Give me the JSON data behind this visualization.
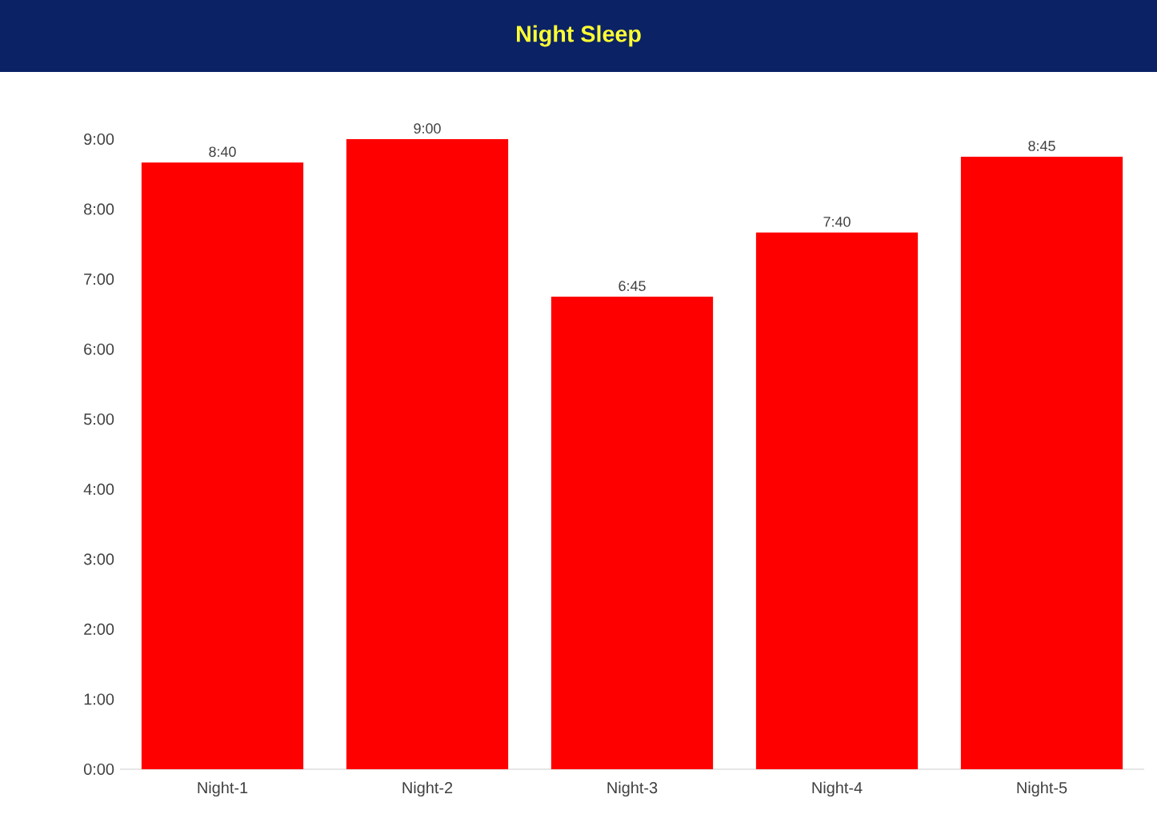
{
  "chart_data": {
    "type": "bar",
    "title": "Night Sleep",
    "categories": [
      "Night-1",
      "Night-2",
      "Night-3",
      "Night-4",
      "Night-5"
    ],
    "values": [
      8.667,
      9.0,
      6.75,
      7.667,
      8.75
    ],
    "value_labels": [
      "8:40",
      "9:00",
      "6:45",
      "7:40",
      "8:45"
    ],
    "color": "#ff0000",
    "ylim": [
      0,
      9
    ],
    "yticks": [
      {
        "value": 0,
        "label": "0:00"
      },
      {
        "value": 1,
        "label": "1:00"
      },
      {
        "value": 2,
        "label": "2:00"
      },
      {
        "value": 3,
        "label": "3:00"
      },
      {
        "value": 4,
        "label": "4:00"
      },
      {
        "value": 5,
        "label": "5:00"
      },
      {
        "value": 6,
        "label": "6:00"
      },
      {
        "value": 7,
        "label": "7:00"
      },
      {
        "value": 8,
        "label": "8:00"
      },
      {
        "value": 9,
        "label": "9:00"
      }
    ],
    "grid": false
  }
}
